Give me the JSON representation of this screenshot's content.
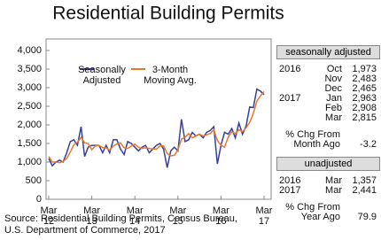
{
  "chart_data": {
    "type": "line",
    "title": "Residential Building Permits",
    "categories": [
      "Mar 12",
      null,
      null,
      null,
      null,
      null,
      null,
      null,
      null,
      null,
      null,
      null,
      "Mar 13",
      null,
      null,
      null,
      null,
      null,
      null,
      null,
      null,
      null,
      null,
      null,
      "Mar 14",
      null,
      null,
      null,
      null,
      null,
      null,
      null,
      null,
      null,
      null,
      null,
      "Mar 15",
      null,
      null,
      null,
      null,
      null,
      null,
      null,
      null,
      null,
      null,
      null,
      "Mar 16",
      null,
      null,
      null,
      null,
      null,
      null,
      null,
      null,
      null,
      null,
      null,
      "Mar 17"
    ],
    "series": [
      {
        "name": "Seasonally Adjusted",
        "color": "#3a3f9a",
        "values": [
          1100,
          900,
          1000,
          1050,
          1000,
          1250,
          1550,
          1600,
          1450,
          1950,
          1150,
          1400,
          1450,
          1450,
          1450,
          1250,
          1450,
          1250,
          1600,
          1600,
          1350,
          1200,
          1550,
          1500,
          1400,
          1300,
          1400,
          1450,
          1250,
          1350,
          1450,
          1500,
          1350,
          850,
          1300,
          1400,
          1300,
          2150,
          1550,
          1600,
          1800,
          1700,
          1750,
          1650,
          1800,
          1850,
          1950,
          950,
          1450,
          1800,
          1750,
          1900,
          1650,
          2050,
          1750,
          1973,
          2483,
          2465,
          2963,
          2908,
          2815
        ]
      },
      {
        "name": "3-Month Moving Avg.",
        "color": "#e8782a",
        "values": [
          1150,
          1000,
          1000,
          983,
          1017,
          1100,
          1267,
          1467,
          1533,
          1667,
          1517,
          1500,
          1333,
          1433,
          1450,
          1383,
          1383,
          1317,
          1433,
          1483,
          1517,
          1383,
          1367,
          1433,
          1483,
          1400,
          1367,
          1383,
          1367,
          1350,
          1350,
          1433,
          1433,
          1233,
          1167,
          1183,
          1333,
          1617,
          1667,
          1767,
          1650,
          1700,
          1750,
          1700,
          1733,
          1767,
          1867,
          1583,
          1450,
          1400,
          1667,
          1817,
          1767,
          1867,
          1817,
          1924,
          2069,
          2307,
          2637,
          2779,
          2895
        ]
      }
    ],
    "ylim": [
      0,
      4000
    ],
    "yticks": [
      0,
      500,
      {
        "value": 1000,
        "label": "1,000"
      },
      {
        "value": 1500,
        "label": "1,500"
      },
      {
        "value": 2000,
        "label": "2,000"
      },
      {
        "value": 2500,
        "label": "2,500"
      },
      {
        "value": 3000,
        "label": "3,000"
      },
      {
        "value": 3500,
        "label": "3,500"
      },
      {
        "value": 4000,
        "label": "4,000"
      }
    ],
    "source": [
      "Source: Residential Building Permits, Census Bureau,",
      "U.S. Department of Commerce, 2017"
    ]
  },
  "panel": {
    "seasonal": {
      "header": "seasonally adjusted",
      "rows": [
        {
          "year": "2016",
          "month": "Oct",
          "value": "1,973"
        },
        {
          "month": "Nov",
          "value": "2,483"
        },
        {
          "month": "Dec",
          "value": "2,465"
        },
        {
          "year": "2017",
          "month": "Jan",
          "value": "2,963"
        },
        {
          "month": "Feb",
          "value": "2,908"
        },
        {
          "month": "Mar",
          "value": "2,815"
        }
      ],
      "change_label": [
        "% Chg From",
        "Month Ago"
      ],
      "change": "-3.2"
    },
    "unadjusted": {
      "header": "unadjusted",
      "rows": [
        {
          "year": "2016",
          "month": "Mar",
          "value": "1,357"
        },
        {
          "year": "2017",
          "month": "Mar",
          "value": "2,441"
        }
      ],
      "change_label": [
        "% Chg From",
        "Year Ago"
      ],
      "change": "79.9"
    }
  }
}
